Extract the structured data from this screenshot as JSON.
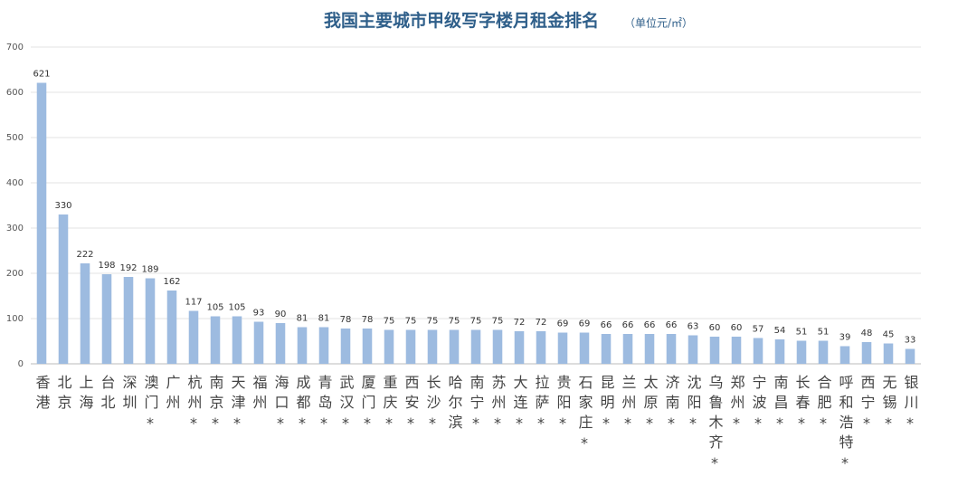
{
  "chart_data": {
    "type": "bar",
    "title": "我国主要城市甲级写字楼月租金排名",
    "subtitle": "（单位元/㎡）",
    "categories": [
      "香港",
      "北京",
      "上海",
      "台北",
      "深圳",
      "澳门*",
      "广州",
      "杭州*",
      "南京*",
      "天津*",
      "福州",
      "海口*",
      "成都*",
      "青岛*",
      "武汉*",
      "厦门*",
      "重庆*",
      "西安*",
      "长沙*",
      "哈尔滨",
      "南宁*",
      "苏州*",
      "大连*",
      "拉萨*",
      "贵阳*",
      "石家庄*",
      "昆明*",
      "兰州*",
      "太原*",
      "济南*",
      "沈阳*",
      "乌鲁木齐*",
      "郑州*",
      "宁波*",
      "南昌*",
      "长春*",
      "合肥*",
      "呼和浩特*",
      "西宁*",
      "无锡*",
      "银川*"
    ],
    "values": [
      621,
      330,
      222,
      198,
      192,
      189,
      162,
      117,
      105,
      105,
      93,
      90,
      81,
      81,
      78,
      78,
      75,
      75,
      75,
      75,
      75,
      75,
      72,
      72,
      69,
      69,
      66,
      66,
      66,
      66,
      63,
      60,
      60,
      57,
      54,
      51,
      51,
      39,
      48,
      45,
      33
    ],
    "color": "#9dbbe0",
    "ylim": [
      0,
      700
    ],
    "yticks": [
      0,
      100,
      200,
      300,
      400,
      500,
      600,
      700
    ],
    "grid": true
  }
}
